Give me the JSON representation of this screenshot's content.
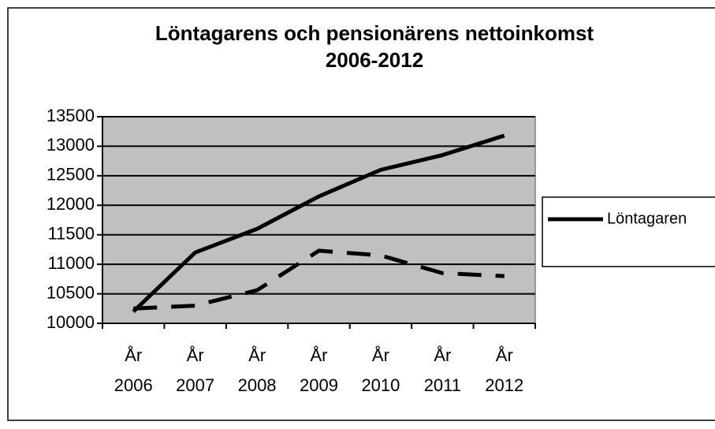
{
  "chart_data": {
    "type": "line",
    "title": [
      "Löntagarens och pensionärens nettoinkomst",
      "2006-2012"
    ],
    "categories": [
      "År 2006",
      "År 2007",
      "År 2008",
      "År 2009",
      "År 2010",
      "År 2011",
      "År 2012"
    ],
    "series": [
      {
        "name": "Löntagaren",
        "color": "#000000",
        "dash": false,
        "values": [
          10200,
          11200,
          11600,
          12150,
          12600,
          12850,
          13180
        ]
      },
      {
        "color": "#000000",
        "dash": true,
        "values": [
          10250,
          10300,
          10560,
          11230,
          11150,
          10850,
          10800
        ]
      }
    ],
    "ylim": [
      10000,
      13500
    ],
    "yticks": [
      10000,
      10500,
      11000,
      11500,
      12000,
      12500,
      13000,
      13500
    ],
    "grid": true,
    "legend": "right"
  }
}
